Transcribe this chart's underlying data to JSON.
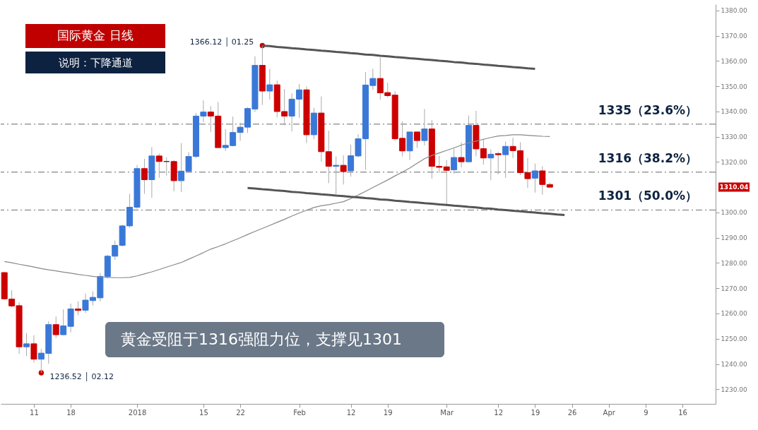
{
  "chart_data": {
    "type": "candlestick",
    "title": "国际黄金  日线",
    "subtitle": "说明：下降通道",
    "categories": [
      null,
      null,
      null,
      null,
      "11",
      null,
      null,
      null,
      null,
      "18",
      null,
      null,
      null,
      null,
      null,
      null,
      null,
      null,
      "2018",
      null,
      null,
      null,
      null,
      null,
      null,
      null,
      null,
      "15",
      null,
      null,
      null,
      null,
      "22",
      null,
      null,
      null,
      null,
      null,
      null,
      null,
      "Feb",
      null,
      null,
      null,
      null,
      null,
      null,
      "12",
      null,
      null,
      null,
      null,
      "19",
      null,
      null,
      null,
      null,
      null,
      null,
      null,
      "Mar",
      null,
      null,
      null,
      null,
      null,
      null,
      "12",
      null,
      null,
      null,
      null,
      "19",
      null,
      null,
      null,
      null,
      "26",
      null,
      null,
      null,
      null,
      "Apr",
      null,
      null,
      null,
      null,
      "9",
      null,
      null,
      null,
      null,
      "16",
      null,
      null,
      null,
      null
    ],
    "ohlc": [
      [
        1276.2,
        1276.5,
        1265.5,
        1265.8
      ],
      [
        1265.7,
        1269.2,
        1262.5,
        1263.0
      ],
      [
        1263.1,
        1264.4,
        1244.0,
        1246.8
      ],
      [
        1246.8,
        1252.3,
        1243.1,
        1248.0
      ],
      [
        1248.0,
        1251.4,
        1240.5,
        1241.9
      ],
      [
        1241.9,
        1246.0,
        1236.52,
        1244.3
      ],
      [
        1244.2,
        1257.0,
        1240.1,
        1255.6
      ],
      [
        1255.6,
        1258.8,
        1250.3,
        1251.6
      ],
      [
        1251.6,
        1261.6,
        1251.4,
        1255.1
      ],
      [
        1254.9,
        1263.9,
        1252.5,
        1261.8
      ],
      [
        1261.8,
        1264.8,
        1259.3,
        1261.2
      ],
      [
        1261.3,
        1267.9,
        1260.2,
        1265.3
      ],
      [
        1265.1,
        1268.8,
        1263.2,
        1266.4
      ],
      [
        1266.2,
        1276.0,
        1264.8,
        1274.7
      ],
      [
        1274.7,
        1283.3,
        1273.9,
        1282.7
      ],
      [
        1282.7,
        1288.9,
        1281.2,
        1287.0
      ],
      [
        1287.0,
        1295.1,
        1286.5,
        1294.7
      ],
      [
        1294.7,
        1307.4,
        1294.0,
        1302.1
      ],
      [
        1302.1,
        1318.8,
        1301.5,
        1317.4
      ],
      [
        1317.4,
        1321.3,
        1307.4,
        1313.0
      ],
      [
        1313.0,
        1325.9,
        1305.8,
        1322.4
      ],
      [
        1322.4,
        1323.4,
        1313.7,
        1320.2
      ],
      [
        1320.2,
        1321.9,
        1314.6,
        1320.2
      ],
      [
        1320.2,
        1320.8,
        1308.4,
        1312.6
      ],
      [
        1312.6,
        1327.5,
        1308.2,
        1316.4
      ],
      [
        1316.4,
        1323.9,
        1315.7,
        1322.2
      ],
      [
        1322.2,
        1339.4,
        1321.6,
        1338.2
      ],
      [
        1338.2,
        1344.4,
        1335.8,
        1339.8
      ],
      [
        1339.8,
        1342.1,
        1331.9,
        1338.2
      ],
      [
        1338.2,
        1343.8,
        1325.7,
        1325.7
      ],
      [
        1325.7,
        1333.1,
        1324.4,
        1326.6
      ],
      [
        1326.5,
        1338.0,
        1326.2,
        1331.7
      ],
      [
        1331.7,
        1335.6,
        1328.4,
        1333.8
      ],
      [
        1333.8,
        1341.7,
        1331.5,
        1341.2
      ],
      [
        1341.0,
        1361.9,
        1339.8,
        1358.3
      ],
      [
        1358.3,
        1366.12,
        1342.6,
        1348.1
      ],
      [
        1348.1,
        1356.9,
        1344.7,
        1350.6
      ],
      [
        1350.6,
        1352.3,
        1337.7,
        1340.0
      ],
      [
        1340.0,
        1348.9,
        1334.5,
        1338.2
      ],
      [
        1338.2,
        1347.2,
        1332.1,
        1344.9
      ],
      [
        1344.9,
        1350.9,
        1337.5,
        1348.6
      ],
      [
        1348.6,
        1350.0,
        1327.5,
        1330.8
      ],
      [
        1330.8,
        1341.5,
        1329.0,
        1339.4
      ],
      [
        1339.4,
        1346.0,
        1320.1,
        1324.1
      ],
      [
        1324.1,
        1332.4,
        1311.6,
        1318.3
      ],
      [
        1318.3,
        1322.2,
        1307.1,
        1318.7
      ],
      [
        1318.7,
        1322.7,
        1311.1,
        1316.2
      ],
      [
        1316.5,
        1326.9,
        1314.2,
        1322.5
      ],
      [
        1322.4,
        1331.0,
        1321.8,
        1329.2
      ],
      [
        1329.2,
        1355.6,
        1316.9,
        1350.5
      ],
      [
        1350.3,
        1356.9,
        1348.6,
        1353.1
      ],
      [
        1353.1,
        1361.4,
        1344.7,
        1347.4
      ],
      [
        1347.5,
        1351.4,
        1345.6,
        1346.3
      ],
      [
        1346.5,
        1348.1,
        1328.4,
        1329.2
      ],
      [
        1329.4,
        1336.1,
        1322.2,
        1324.4
      ],
      [
        1324.4,
        1331.9,
        1320.8,
        1331.9
      ],
      [
        1331.9,
        1331.9,
        1325.6,
        1328.5
      ],
      [
        1328.5,
        1341.0,
        1326.6,
        1333.1
      ],
      [
        1333.1,
        1336.6,
        1313.4,
        1318.3
      ],
      [
        1318.3,
        1322.4,
        1315.7,
        1317.9
      ],
      [
        1318.1,
        1320.8,
        1303.2,
        1316.7
      ],
      [
        1316.9,
        1325.3,
        1315.3,
        1321.8
      ],
      [
        1321.8,
        1327.8,
        1317.9,
        1320.1
      ],
      [
        1320.1,
        1338.4,
        1319.9,
        1334.5
      ],
      [
        1334.5,
        1340.3,
        1322.2,
        1325.2
      ],
      [
        1325.3,
        1329.2,
        1319.0,
        1321.6
      ],
      [
        1321.6,
        1325.0,
        1312.8,
        1323.1
      ],
      [
        1323.3,
        1324.1,
        1315.1,
        1322.9
      ],
      [
        1322.9,
        1328.1,
        1313.7,
        1326.2
      ],
      [
        1326.2,
        1329.6,
        1321.6,
        1324.5
      ],
      [
        1324.5,
        1327.8,
        1314.8,
        1315.8
      ],
      [
        1315.8,
        1321.6,
        1309.7,
        1313.4
      ],
      [
        1313.6,
        1319.4,
        1307.9,
        1316.5
      ],
      [
        1316.5,
        1318.3,
        1307.1,
        1311.1
      ],
      [
        1311.1,
        1311.8,
        1310.0,
        1310.04
      ],
      null,
      null,
      null,
      null,
      null,
      null,
      null,
      null,
      null,
      null,
      null,
      null,
      null,
      null,
      null,
      null,
      null,
      null,
      null,
      null,
      null,
      null
    ],
    "colors": [
      "#cc0000",
      "#cc0000",
      "#cc0000",
      "#3a78d8",
      "#cc0000",
      "#3a78d8",
      "#3a78d8",
      "#cc0000",
      "#3a78d8",
      "#3a78d8",
      "#cc0000",
      "#3a78d8",
      "#3a78d8",
      "#3a78d8",
      "#3a78d8",
      "#3a78d8",
      "#3a78d8",
      "#3a78d8",
      "#3a78d8",
      "#cc0000",
      "#3a78d8",
      "#cc0000",
      "#333333",
      "#cc0000",
      "#3a78d8",
      "#3a78d8",
      "#3a78d8",
      "#3a78d8",
      "#cc0000",
      "#cc0000",
      "#3a78d8",
      "#3a78d8",
      "#3a78d8",
      "#3a78d8",
      "#3a78d8",
      "#cc0000",
      "#3a78d8",
      "#cc0000",
      "#cc0000",
      "#3a78d8",
      "#3a78d8",
      "#cc0000",
      "#3a78d8",
      "#cc0000",
      "#cc0000",
      "#3a78d8",
      "#cc0000",
      "#3a78d8",
      "#3a78d8",
      "#3a78d8",
      "#3a78d8",
      "#cc0000",
      "#cc0000",
      "#cc0000",
      "#cc0000",
      "#3a78d8",
      "#cc0000",
      "#3a78d8",
      "#cc0000",
      "#cc0000",
      "#cc0000",
      "#3a78d8",
      "#cc0000",
      "#3a78d8",
      "#cc0000",
      "#cc0000",
      "#3a78d8",
      "#cc0000",
      "#3a78d8",
      "#cc0000",
      "#cc0000",
      "#cc0000",
      "#3a78d8",
      "#cc0000",
      "#cc0000",
      null,
      null,
      null,
      null,
      null,
      null,
      null,
      null,
      null,
      null,
      null,
      null,
      null,
      null,
      null,
      null,
      null,
      null,
      null,
      null,
      null,
      null
    ],
    "series": [
      {
        "type": "line",
        "color": "#888888",
        "values": [
          1280.6,
          1280.1,
          1279.5,
          1279.0,
          1278.4,
          1277.8,
          1277.3,
          1276.9,
          1276.4,
          1276.0,
          1275.5,
          1275.1,
          1274.7,
          1274.4,
          1274.3,
          1274.2,
          1274.2,
          1274.3,
          1274.9,
          1275.7,
          1276.5,
          1277.4,
          1278.4,
          1279.3,
          1280.2,
          1281.5,
          1282.8,
          1284.1,
          1285.5,
          1286.5,
          1287.6,
          1288.8,
          1290.0,
          1291.3,
          1292.5,
          1293.7,
          1294.9,
          1296.1,
          1297.3,
          1298.6,
          1299.8,
          1300.9,
          1302.0,
          1302.7,
          1303.1,
          1303.7,
          1304.3,
          1305.5,
          1306.9,
          1308.4,
          1309.9,
          1311.4,
          1312.9,
          1314.5,
          1316.0,
          1317.6,
          1319.5,
          1321.3,
          1322.6,
          1323.6,
          1324.6,
          1325.6,
          1326.7,
          1327.6,
          1328.3,
          1329.0,
          1329.7,
          1330.3,
          1330.5,
          1330.8,
          1330.8,
          1330.6,
          1330.4,
          1330.2,
          1330.1,
          null,
          null,
          null,
          null,
          null,
          null,
          null,
          null,
          null,
          null,
          null,
          null,
          null,
          null,
          null,
          null,
          null,
          null,
          null,
          null,
          null,
          null
        ]
      },
      {
        "type": "line",
        "color": "#555555",
        "values": [
          null,
          null,
          null,
          null,
          null,
          null,
          null,
          null,
          null,
          null,
          null,
          null,
          null,
          null,
          null,
          null,
          null,
          null,
          null,
          null,
          null,
          null,
          null,
          null,
          null,
          null,
          null,
          null,
          null,
          null,
          null,
          null,
          null,
          null,
          null,
          1366.1,
          1365.9,
          1365.6,
          1365.4,
          1365.1,
          1364.9,
          1364.6,
          1364.4,
          1364.1,
          1363.9,
          1363.6,
          1363.4,
          1363.1,
          1362.9,
          1362.6,
          1362.4,
          1362.1,
          1361.9,
          1361.6,
          1361.4,
          1361.1,
          1360.9,
          1360.6,
          1360.4,
          1360.1,
          1359.9,
          1359.6,
          1359.4,
          1359.1,
          1358.9,
          1358.6,
          1358.4,
          1358.1,
          1357.9,
          1357.6,
          1357.4,
          1357.1,
          1356.9,
          null,
          null,
          null,
          null,
          null,
          null,
          null,
          null,
          null,
          null,
          null,
          null,
          null,
          null,
          null,
          null,
          null,
          null,
          null,
          null,
          null,
          null,
          null,
          null
        ]
      },
      {
        "type": "line",
        "color": "#555555",
        "values": [
          null,
          null,
          null,
          null,
          null,
          null,
          null,
          null,
          null,
          null,
          null,
          null,
          null,
          null,
          null,
          null,
          null,
          null,
          null,
          null,
          null,
          null,
          null,
          null,
          null,
          null,
          null,
          null,
          null,
          null,
          null,
          null,
          null,
          1309.7,
          1309.5,
          1309.2,
          1309.0,
          1308.7,
          1308.5,
          1308.2,
          1308.0,
          1307.7,
          1307.5,
          1307.2,
          1307.0,
          1306.7,
          1306.5,
          1306.2,
          1306.0,
          1305.7,
          1305.5,
          1305.2,
          1305.0,
          1304.7,
          1304.5,
          1304.2,
          1304.0,
          1303.7,
          1303.5,
          1303.2,
          1303.0,
          1302.7,
          1302.5,
          1302.2,
          1302.0,
          1301.7,
          1301.5,
          1301.2,
          1301.0,
          1300.7,
          1300.5,
          1300.2,
          1300.0,
          1299.7,
          1299.5,
          1299.2,
          1299.0,
          null,
          null,
          null,
          null,
          null,
          null,
          null,
          null,
          null,
          null,
          null,
          null,
          null,
          null,
          null,
          null,
          null,
          null,
          null,
          null
        ]
      },
      {
        "type": "scatter",
        "color": "#cc0000",
        "marker": "circle",
        "values": [
          null,
          null,
          null,
          null,
          null,
          1236.52,
          null,
          null,
          null,
          null,
          null,
          null,
          null,
          null,
          null,
          null,
          null,
          null,
          null,
          null,
          null,
          null,
          null,
          null,
          null,
          null,
          null,
          null,
          null,
          null,
          null,
          null,
          null,
          null,
          null,
          1366.12,
          null,
          null,
          null,
          null,
          null,
          null,
          null,
          null,
          null,
          null,
          null,
          null,
          null,
          null,
          null,
          null,
          null,
          null,
          null,
          null,
          null,
          null,
          null,
          null,
          null,
          null,
          null,
          null,
          null,
          null,
          null,
          null,
          null,
          null,
          null,
          null,
          null,
          null,
          null,
          null,
          null,
          null,
          null,
          null,
          null,
          null,
          null,
          null,
          null,
          null,
          null,
          null,
          null,
          null,
          null,
          null,
          null,
          null,
          null,
          null,
          null
        ]
      }
    ],
    "ylim": [
      1224.2,
      1382.5
    ],
    "yticks": [
      {
        "value": 1230,
        "label": "1230.00"
      },
      {
        "value": 1240,
        "label": "1240.00"
      },
      {
        "value": 1250,
        "label": "1250.00"
      },
      {
        "value": 1260,
        "label": "1260.00"
      },
      {
        "value": 1270,
        "label": "1270.00"
      },
      {
        "value": 1280,
        "label": "1280.00"
      },
      {
        "value": 1290,
        "label": "1290.00"
      },
      {
        "value": 1300,
        "label": "1300.00"
      },
      {
        "value": 1320,
        "label": "1320.00"
      },
      {
        "value": 1330,
        "label": "1330.00"
      },
      {
        "value": 1340,
        "label": "1340.00"
      },
      {
        "value": 1350,
        "label": "1350.00"
      },
      {
        "value": 1360,
        "label": "1360.00"
      },
      {
        "value": 1370,
        "label": "1370.00"
      },
      {
        "value": 1380,
        "label": "1380.00"
      }
    ],
    "ref_lines": [
      {
        "axis": "y",
        "value": 1335,
        "label": "1335（23.6%）",
        "color": "#999999",
        "line_style": "dashdot"
      },
      {
        "axis": "y",
        "value": 1316,
        "label": "1316（38.2%）",
        "color": "#999999",
        "line_style": "dashdot"
      },
      {
        "axis": "y",
        "value": 1301,
        "label": "1301（50.0%）",
        "color": "#999999",
        "line_style": "dashdot"
      }
    ],
    "annotations": [
      "1236.52 │ 02.12",
      "1366.12 │ 01.25",
      "1310.04",
      "黄金受阻于1316强阻力位，支撑见1301"
    ],
    "grid": false
  }
}
